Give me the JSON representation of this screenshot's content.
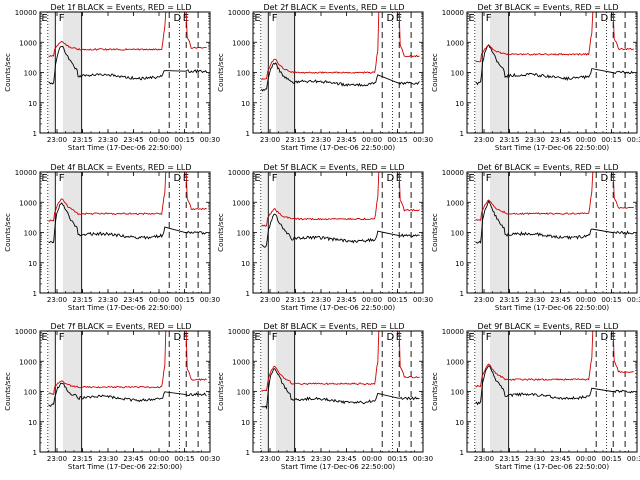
{
  "colors": {
    "events": "#000000",
    "lld": "#d00000",
    "shade": "#e6e6e6",
    "axis": "#000000"
  },
  "common": {
    "ylabel": "Counts/sec",
    "xlabel": "Start Time (17-Dec-06 22:50:00)",
    "x_ticks": [
      "23:00",
      "23:15",
      "23:30",
      "23:45",
      "00:00",
      "00:15",
      "00:30"
    ],
    "y_ticks": [
      "1",
      "10",
      "100",
      "1000",
      "10000"
    ]
  },
  "chart_data": [
    {
      "type": "line",
      "title": "Det 1f BLACK = Events, RED = LLD",
      "x_unit": "minutes after 22:50",
      "xlim": [
        0,
        100
      ],
      "ylim": [
        1,
        10000
      ],
      "yscale": "log",
      "letters": [
        "E",
        "F",
        "D",
        "E"
      ],
      "event_bg": 75,
      "lld_bg": 580,
      "event_peak": 800,
      "lld_peak": 1050,
      "end_event": 110,
      "end_lld": 650,
      "series": [
        {
          "name": "BLACK = Events"
        },
        {
          "name": "RED = LLD"
        }
      ]
    },
    {
      "type": "line",
      "title": "Det 2f BLACK = Events, RED = LLD",
      "x_unit": "minutes after 22:50",
      "xlim": [
        0,
        100
      ],
      "ylim": [
        1,
        10000
      ],
      "yscale": "log",
      "letters": [
        "E",
        "F",
        "D",
        "E"
      ],
      "event_bg": 45,
      "lld_bg": 100,
      "event_peak": 210,
      "lld_peak": 280,
      "end_event": 45,
      "end_lld": 350,
      "series": [
        {
          "name": "BLACK = Events"
        },
        {
          "name": "RED = LLD"
        }
      ]
    },
    {
      "type": "line",
      "title": "Det 3f BLACK = Events, RED = LLD",
      "x_unit": "minutes after 22:50",
      "xlim": [
        0,
        100
      ],
      "ylim": [
        1,
        10000
      ],
      "yscale": "log",
      "letters": [
        "E",
        "F",
        "D",
        "E"
      ],
      "event_bg": 75,
      "lld_bg": 400,
      "event_peak": 800,
      "lld_peak": 800,
      "end_event": 100,
      "end_lld": 600,
      "series": [
        {
          "name": "BLACK = Events"
        },
        {
          "name": "RED = LLD"
        }
      ]
    },
    {
      "type": "line",
      "title": "Det 4f BLACK = Events, RED = LLD",
      "x_unit": "minutes after 22:50",
      "xlim": [
        0,
        100
      ],
      "ylim": [
        1,
        10000
      ],
      "yscale": "log",
      "letters": [
        "E",
        "F",
        "D",
        "E"
      ],
      "event_bg": 80,
      "lld_bg": 420,
      "event_peak": 1000,
      "lld_peak": 1300,
      "end_event": 100,
      "end_lld": 600,
      "series": [
        {
          "name": "BLACK = Events"
        },
        {
          "name": "RED = LLD"
        }
      ]
    },
    {
      "type": "line",
      "title": "Det 5f BLACK = Events, RED = LLD",
      "x_unit": "minutes after 22:50",
      "xlim": [
        0,
        100
      ],
      "ylim": [
        1,
        10000
      ],
      "yscale": "log",
      "letters": [
        "E",
        "F",
        "D",
        "E"
      ],
      "event_bg": 60,
      "lld_bg": 280,
      "event_peak": 400,
      "lld_peak": 600,
      "end_event": 80,
      "end_lld": 550,
      "series": [
        {
          "name": "BLACK = Events"
        },
        {
          "name": "RED = LLD"
        }
      ]
    },
    {
      "type": "line",
      "title": "Det 6f BLACK = Events, RED = LLD",
      "x_unit": "minutes after 22:50",
      "xlim": [
        0,
        100
      ],
      "ylim": [
        1,
        10000
      ],
      "yscale": "log",
      "letters": [
        "E",
        "F",
        "D",
        "E"
      ],
      "event_bg": 80,
      "lld_bg": 420,
      "event_peak": 1000,
      "lld_peak": 1200,
      "end_event": 100,
      "end_lld": 650,
      "series": [
        {
          "name": "BLACK = Events"
        },
        {
          "name": "RED = LLD"
        }
      ]
    },
    {
      "type": "line",
      "title": "Det 7f BLACK = Events, RED = LLD",
      "x_unit": "minutes after 22:50",
      "xlim": [
        0,
        100
      ],
      "ylim": [
        1,
        10000
      ],
      "yscale": "log",
      "letters": [
        "E",
        "F",
        "D",
        "E"
      ],
      "event_bg": 60,
      "lld_bg": 140,
      "event_peak": 200,
      "lld_peak": 230,
      "end_event": 80,
      "end_lld": 250,
      "series": [
        {
          "name": "BLACK = Events"
        },
        {
          "name": "RED = LLD"
        }
      ]
    },
    {
      "type": "line",
      "title": "Det 8f BLACK = Events, RED = LLD",
      "x_unit": "minutes after 22:50",
      "xlim": [
        0,
        100
      ],
      "ylim": [
        1,
        10000
      ],
      "yscale": "log",
      "letters": [
        "E",
        "F",
        "D",
        "E"
      ],
      "event_bg": 50,
      "lld_bg": 180,
      "event_peak": 600,
      "lld_peak": 700,
      "end_event": 60,
      "end_lld": 300,
      "series": [
        {
          "name": "BLACK = Events"
        },
        {
          "name": "RED = LLD"
        }
      ]
    },
    {
      "type": "line",
      "title": "Det 9f BLACK = Events, RED = LLD",
      "x_unit": "minutes after 22:50",
      "xlim": [
        0,
        100
      ],
      "ylim": [
        1,
        10000
      ],
      "yscale": "log",
      "letters": [
        "E",
        "F",
        "D",
        "E"
      ],
      "event_bg": 70,
      "lld_bg": 250,
      "event_peak": 700,
      "lld_peak": 800,
      "end_event": 100,
      "end_lld": 450,
      "series": [
        {
          "name": "BLACK = Events"
        },
        {
          "name": "RED = LLD"
        }
      ]
    }
  ]
}
